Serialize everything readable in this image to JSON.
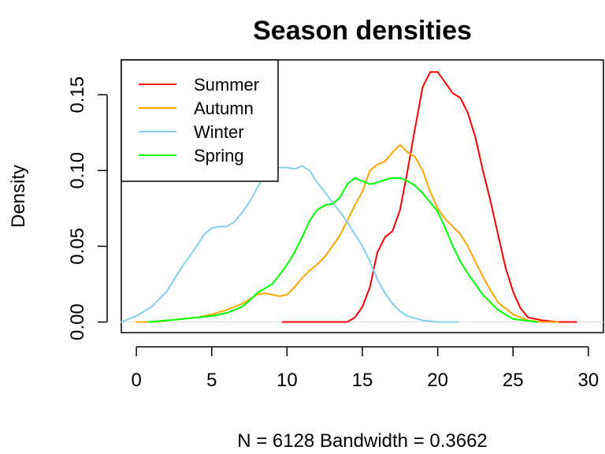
{
  "chart_data": {
    "type": "line",
    "title": "Season densities",
    "xlabel": "N = 6128   Bandwidth = 0.3662",
    "ylabel": "Density",
    "xlim": [
      -1,
      31
    ],
    "ylim": [
      -0.007,
      0.173
    ],
    "x_ticks": [
      "0",
      "5",
      "10",
      "15",
      "20",
      "25",
      "30"
    ],
    "y_ticks": [
      "0.00",
      "0.05",
      "0.10",
      "0.15"
    ],
    "legend_position": "top-left",
    "series": [
      {
        "name": "Summer",
        "color": "#ff0000",
        "x": [
          9.7,
          11,
          12,
          12.5,
          13,
          13.5,
          14,
          14.5,
          15,
          15.5,
          16,
          16.5,
          17,
          17.5,
          18,
          18.5,
          19,
          19.5,
          20,
          20.5,
          21,
          21.5,
          22,
          22.5,
          23,
          23.5,
          24,
          24.5,
          25,
          25.5,
          26,
          27,
          28,
          29.2
        ],
        "values": [
          0.0,
          0.0,
          0.0,
          0.0,
          0.0,
          0.0,
          0.0,
          0.003,
          0.01,
          0.023,
          0.046,
          0.056,
          0.06,
          0.074,
          0.1,
          0.128,
          0.155,
          0.165,
          0.165,
          0.158,
          0.151,
          0.148,
          0.138,
          0.122,
          0.1,
          0.08,
          0.058,
          0.036,
          0.02,
          0.009,
          0.003,
          0.001,
          0.0,
          0.0
        ]
      },
      {
        "name": "Autumn",
        "color": "#ffa500",
        "x": [
          0,
          1,
          2,
          3,
          4,
          5,
          6,
          7,
          7.5,
          8,
          8.5,
          9,
          9.5,
          10,
          10.5,
          11,
          11.5,
          12,
          12.5,
          13,
          13.5,
          14,
          14.5,
          15,
          15.5,
          16,
          16.5,
          17,
          17.5,
          18,
          18.5,
          19,
          19.5,
          20,
          20.5,
          21,
          21.5,
          22,
          22.5,
          23,
          23.5,
          24,
          25,
          26,
          27,
          28
        ],
        "values": [
          0.0,
          0.0,
          0.001,
          0.002,
          0.003,
          0.005,
          0.008,
          0.012,
          0.015,
          0.018,
          0.019,
          0.018,
          0.017,
          0.018,
          0.023,
          0.029,
          0.034,
          0.038,
          0.043,
          0.05,
          0.057,
          0.067,
          0.077,
          0.086,
          0.1,
          0.104,
          0.106,
          0.112,
          0.117,
          0.112,
          0.109,
          0.1,
          0.086,
          0.075,
          0.068,
          0.063,
          0.058,
          0.05,
          0.04,
          0.03,
          0.021,
          0.013,
          0.005,
          0.001,
          0.0,
          0.0
        ]
      },
      {
        "name": "Winter",
        "color": "#87ceeb",
        "x": [
          -1,
          0,
          1,
          2,
          2.5,
          3,
          3.5,
          4,
          4.5,
          5,
          5.5,
          6,
          6.5,
          7,
          7.5,
          8,
          8.5,
          9,
          9.5,
          10,
          10.5,
          11,
          11.5,
          12,
          12.5,
          13,
          13.5,
          14,
          14.5,
          15,
          15.5,
          16,
          16.5,
          17,
          17.5,
          18,
          19,
          20,
          21.3
        ],
        "values": [
          0.0,
          0.004,
          0.01,
          0.02,
          0.028,
          0.036,
          0.043,
          0.05,
          0.058,
          0.062,
          0.063,
          0.063,
          0.066,
          0.072,
          0.079,
          0.088,
          0.097,
          0.101,
          0.102,
          0.102,
          0.101,
          0.103,
          0.1,
          0.092,
          0.086,
          0.079,
          0.073,
          0.066,
          0.058,
          0.05,
          0.04,
          0.028,
          0.019,
          0.012,
          0.007,
          0.004,
          0.001,
          0.0,
          0.0
        ]
      },
      {
        "name": "Spring",
        "color": "#00ff00",
        "x": [
          0.8,
          2,
          3,
          4,
          5,
          6,
          7,
          7.5,
          8,
          8.5,
          9,
          9.5,
          10,
          10.5,
          11,
          11.5,
          12,
          12.5,
          13,
          13.5,
          14,
          14.5,
          15,
          15.5,
          16,
          16.5,
          17,
          17.5,
          18,
          18.5,
          19,
          19.5,
          20,
          20.5,
          21,
          21.5,
          22,
          23,
          24,
          25,
          26.6
        ],
        "values": [
          0.0,
          0.001,
          0.002,
          0.003,
          0.004,
          0.006,
          0.01,
          0.014,
          0.019,
          0.022,
          0.025,
          0.031,
          0.038,
          0.046,
          0.056,
          0.067,
          0.074,
          0.077,
          0.078,
          0.082,
          0.091,
          0.095,
          0.093,
          0.091,
          0.092,
          0.094,
          0.095,
          0.095,
          0.093,
          0.09,
          0.085,
          0.079,
          0.073,
          0.062,
          0.05,
          0.04,
          0.032,
          0.018,
          0.008,
          0.002,
          0.0
        ]
      }
    ]
  }
}
